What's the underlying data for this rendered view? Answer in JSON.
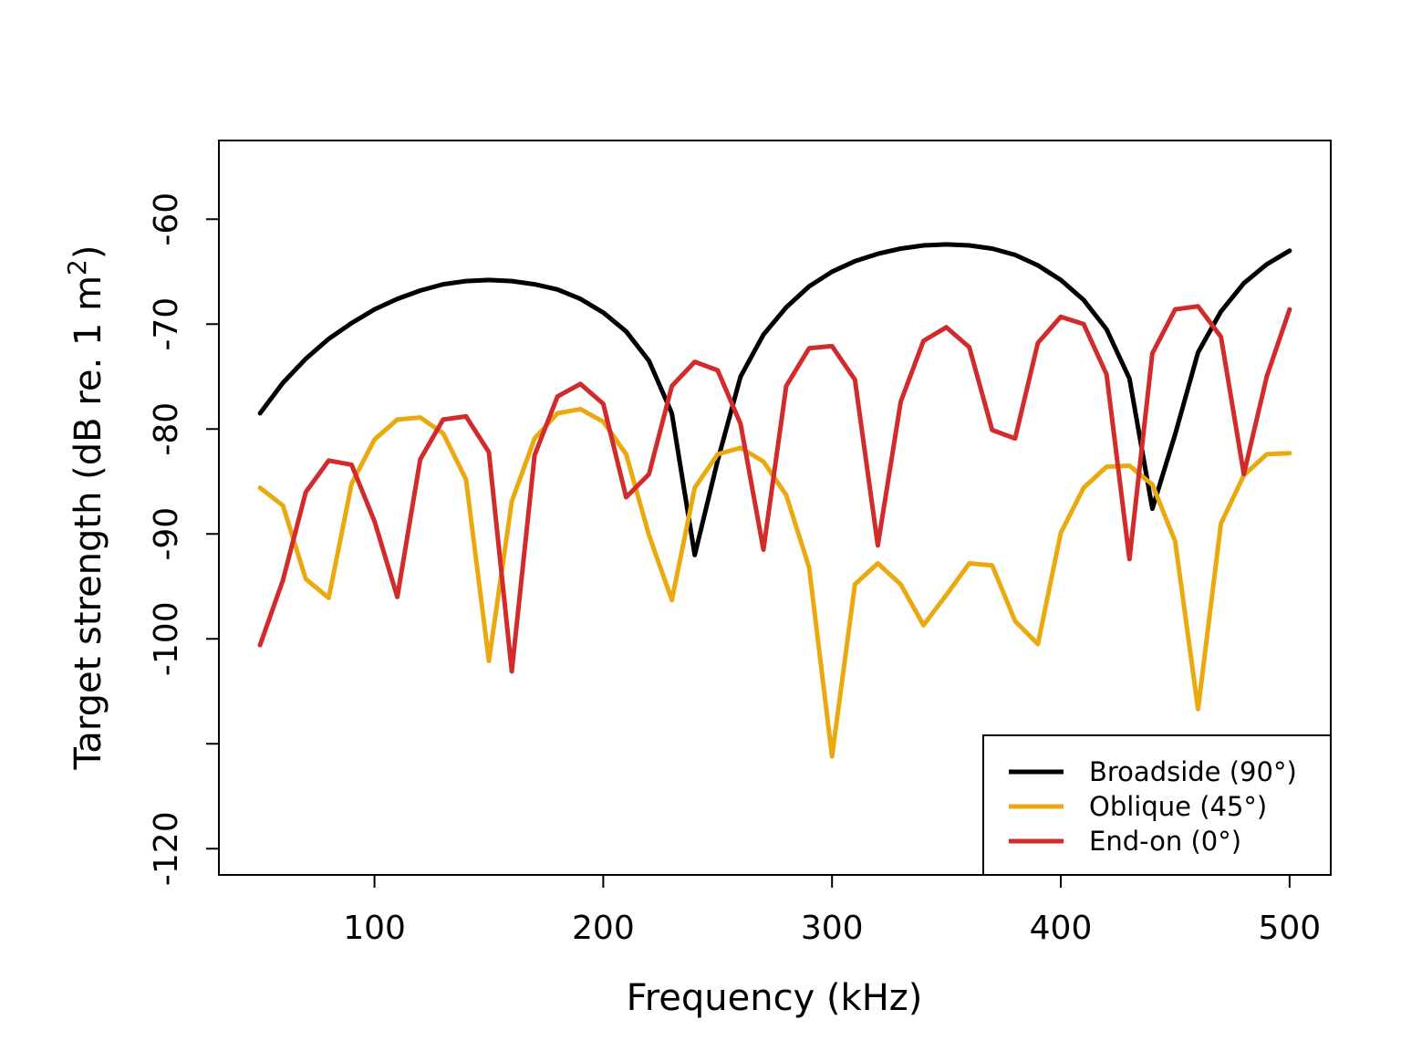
{
  "chart_data": {
    "type": "line",
    "title": "",
    "xlabel": "Frequency (kHz)",
    "ylabel": "Target strength (dB re. 1 m",
    "ylabel_superscript": "2",
    "ylabel_close": ")",
    "xlim": [
      32,
      518
    ],
    "ylim": [
      -122.5,
      -52.5
    ],
    "x_ticks": [
      100,
      200,
      300,
      400,
      500
    ],
    "y_ticks": [
      -120,
      -110,
      -100,
      -90,
      -80,
      -70,
      -60
    ],
    "y_tick_labels": [
      "-120",
      "",
      "-100",
      "-90",
      "-80",
      "-70",
      "-60"
    ],
    "grid": false,
    "legend_position": "bottom-right",
    "x": [
      50,
      60,
      70,
      80,
      90,
      100,
      110,
      120,
      130,
      140,
      150,
      160,
      170,
      180,
      190,
      200,
      210,
      220,
      230,
      240,
      250,
      260,
      270,
      280,
      290,
      300,
      310,
      320,
      330,
      340,
      350,
      360,
      370,
      380,
      390,
      400,
      410,
      420,
      430,
      440,
      450,
      460,
      470,
      480,
      490,
      500
    ],
    "series": [
      {
        "name": "Broadside (90°)",
        "color": "#000000",
        "values": [
          -78.5,
          -75.6,
          -73.3,
          -71.4,
          -69.9,
          -68.6,
          -67.6,
          -66.8,
          -66.2,
          -65.9,
          -65.8,
          -65.9,
          -66.2,
          -66.7,
          -67.6,
          -68.9,
          -70.7,
          -73.5,
          -78.5,
          -92.0,
          -83.0,
          -75.0,
          -71.0,
          -68.4,
          -66.4,
          -65.0,
          -64.0,
          -63.3,
          -62.8,
          -62.5,
          -62.4,
          -62.5,
          -62.8,
          -63.4,
          -64.4,
          -65.8,
          -67.7,
          -70.5,
          -75.2,
          -87.6,
          -80.5,
          -72.7,
          -68.8,
          -66.1,
          -64.3,
          -63.0
        ]
      },
      {
        "name": "Oblique (45°)",
        "color": "#E9A90F",
        "values": [
          -85.6,
          -87.3,
          -94.3,
          -96.1,
          -85.2,
          -81.0,
          -79.1,
          -78.9,
          -80.4,
          -84.8,
          -102.1,
          -86.9,
          -80.9,
          -78.5,
          -78.1,
          -79.3,
          -82.4,
          -90.1,
          -96.3,
          -85.6,
          -82.4,
          -81.8,
          -83.1,
          -86.3,
          -93.2,
          -111.2,
          -94.8,
          -92.8,
          -94.8,
          -98.7,
          -95.8,
          -92.8,
          -93.0,
          -98.3,
          -100.5,
          -89.9,
          -85.6,
          -83.6,
          -83.5,
          -85.3,
          -90.7,
          -106.7,
          -89.0,
          -84.4,
          -82.4,
          -82.3
        ]
      },
      {
        "name": "End-on (0°)",
        "color": "#D12B2C",
        "values": [
          -100.6,
          -94.4,
          -86.0,
          -83.0,
          -83.4,
          -88.8,
          -96.0,
          -82.9,
          -79.1,
          -78.8,
          -82.2,
          -103.1,
          -82.5,
          -76.9,
          -75.7,
          -77.6,
          -86.5,
          -84.3,
          -75.9,
          -73.6,
          -74.4,
          -79.5,
          -91.5,
          -75.9,
          -72.3,
          -72.1,
          -75.3,
          -91.1,
          -77.4,
          -71.6,
          -70.3,
          -72.2,
          -80.1,
          -80.9,
          -71.8,
          -69.3,
          -70.0,
          -74.8,
          -92.4,
          -72.8,
          -68.6,
          -68.3,
          -71.2,
          -84.3,
          -75.0,
          -68.6
        ]
      }
    ]
  }
}
